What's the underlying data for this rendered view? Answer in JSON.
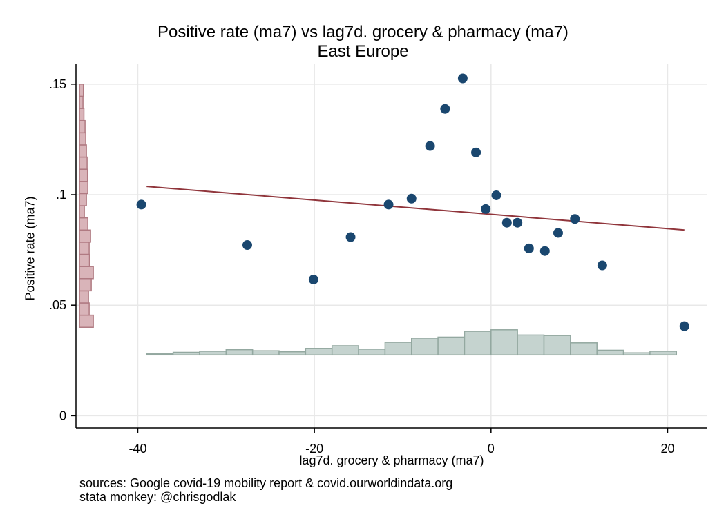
{
  "chart_data": {
    "type": "scatter",
    "title": "Positive rate (ma7) vs lag7d. grocery & pharmacy (ma7)",
    "subtitle": "East Europe",
    "xlabel": "lag7d. grocery & pharmacy (ma7)",
    "ylabel": "Positive rate (ma7)",
    "xlim": [
      -47,
      24.5
    ],
    "ylim": [
      -0.0055,
      0.159
    ],
    "xticks": [
      -40,
      -20,
      0,
      20
    ],
    "xtick_labels": [
      "-40",
      "-20",
      "0",
      "20"
    ],
    "yticks": [
      0,
      0.05,
      0.1,
      0.15
    ],
    "ytick_labels": [
      "0",
      ".05",
      ".1",
      ".15"
    ],
    "grid": true,
    "points": [
      {
        "x": -39.6,
        "y": 0.0955
      },
      {
        "x": -27.6,
        "y": 0.0772
      },
      {
        "x": -20.1,
        "y": 0.0616
      },
      {
        "x": -15.9,
        "y": 0.0808
      },
      {
        "x": -11.6,
        "y": 0.0955
      },
      {
        "x": -9.0,
        "y": 0.0982
      },
      {
        "x": -6.9,
        "y": 0.122
      },
      {
        "x": -5.2,
        "y": 0.1388
      },
      {
        "x": -3.2,
        "y": 0.1526
      },
      {
        "x": -1.7,
        "y": 0.1191
      },
      {
        "x": -0.6,
        "y": 0.0935
      },
      {
        "x": 0.6,
        "y": 0.0997
      },
      {
        "x": 1.8,
        "y": 0.0873
      },
      {
        "x": 3.0,
        "y": 0.0873
      },
      {
        "x": 4.3,
        "y": 0.0757
      },
      {
        "x": 6.1,
        "y": 0.0745
      },
      {
        "x": 7.6,
        "y": 0.0827
      },
      {
        "x": 9.5,
        "y": 0.089
      },
      {
        "x": 12.6,
        "y": 0.068
      },
      {
        "x": 21.9,
        "y": 0.0405
      }
    ],
    "fit_line": {
      "x": [
        -39.0,
        21.9
      ],
      "y": [
        0.1037,
        0.084
      ]
    },
    "x_histogram": {
      "bin_edges": [
        -39,
        -36,
        -33,
        -30,
        -27,
        -24,
        -21,
        -18,
        -15,
        -12,
        -9,
        -6,
        -3,
        0,
        3,
        6,
        9,
        12,
        15,
        18,
        21
      ],
      "relative_heights": [
        0.02,
        0.1,
        0.14,
        0.2,
        0.16,
        0.12,
        0.25,
        0.35,
        0.22,
        0.48,
        0.64,
        0.68,
        0.9,
        0.96,
        0.76,
        0.74,
        0.46,
        0.18,
        0.08,
        0.14
      ]
    },
    "y_histogram": {
      "bin_edges": [
        0.04,
        0.0455,
        0.051,
        0.0565,
        0.062,
        0.0675,
        0.073,
        0.0785,
        0.084,
        0.0895,
        0.095,
        0.1005,
        0.106,
        0.1115,
        0.117,
        0.1225,
        0.128,
        0.1335,
        0.139,
        0.1445,
        0.15
      ],
      "relative_heights": [
        1.0,
        0.7,
        0.65,
        0.85,
        1.0,
        0.72,
        0.7,
        0.8,
        0.6,
        0.35,
        0.5,
        0.6,
        0.58,
        0.55,
        0.5,
        0.45,
        0.4,
        0.32,
        0.25,
        0.28
      ]
    },
    "colors": {
      "points": "#1a476f",
      "fit_line": "#90353b",
      "x_hist_fill": "#c5d3cf",
      "x_hist_stroke": "#93a8a0",
      "y_hist_fill": "#d9b4b9",
      "y_hist_stroke": "#b07a82",
      "grid": "#e8e8e8"
    }
  },
  "notes": {
    "line1": "sources: Google covid-19 mobility report & covid.ourworldindata.org",
    "line2": "stata monkey: @chrisgodlak"
  }
}
